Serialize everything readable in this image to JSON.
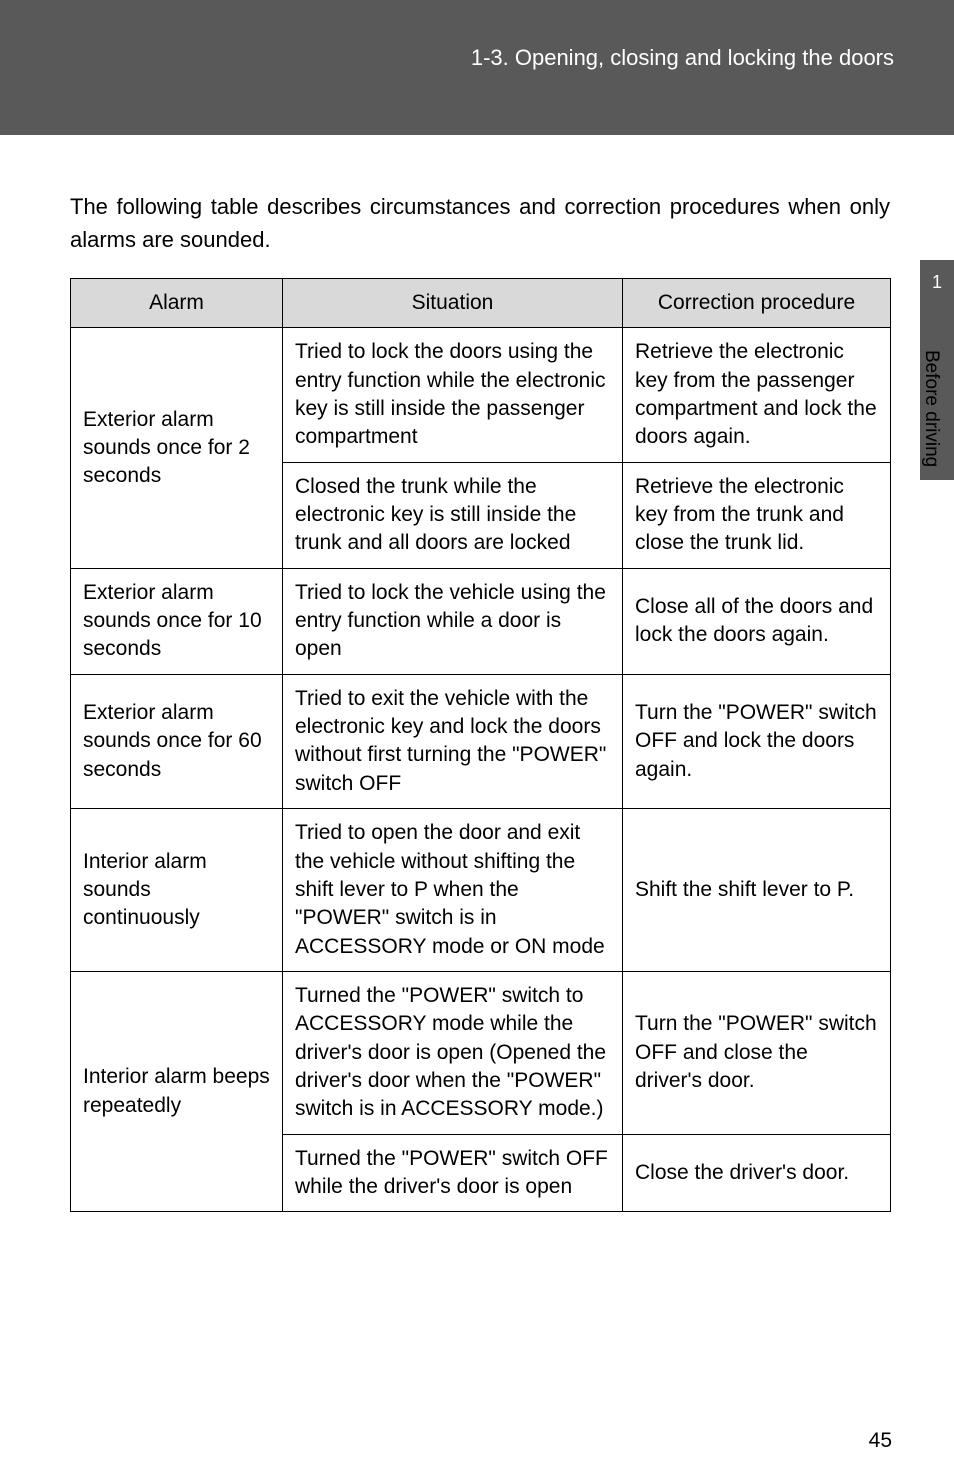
{
  "header": {
    "section_label": "1-3. Opening, closing and locking the doors"
  },
  "intro": "The following table describes circumstances and correction procedures when only alarms are sounded.",
  "table": {
    "columns": [
      "Alarm",
      "Situation",
      "Correction procedure"
    ],
    "header_bg": "#d9d9d9",
    "border_color": "#000000",
    "rows": [
      {
        "alarm": "Exterior alarm sounds once for 2 seconds",
        "alarm_rowspan": 2,
        "situation": "Tried to lock the doors using the entry function while the electronic key is still inside the passenger compartment",
        "correction": "Retrieve the electronic key from the passenger compartment and lock the doors again."
      },
      {
        "situation": "Closed the trunk while the electronic key is still inside the trunk and all doors are locked",
        "correction": "Retrieve the electronic key from the trunk and close the trunk lid."
      },
      {
        "alarm": "Exterior alarm sounds once for 10 seconds",
        "situation": "Tried to lock the vehicle using the entry function while a door is open",
        "correction": "Close all of the doors and lock the doors again."
      },
      {
        "alarm": "Exterior alarm sounds once for 60 seconds",
        "situation": "Tried to exit the vehicle with the electronic key and lock the doors without first turning the \"POWER\" switch OFF",
        "correction": "Turn the \"POWER\" switch OFF and lock the doors again."
      },
      {
        "alarm": "Interior alarm sounds continuously",
        "situation": "Tried to open the door and exit the vehicle without shifting the shift lever to P when the \"POWER\" switch is in ACCESSORY mode or ON mode",
        "correction": "Shift the shift lever to P."
      },
      {
        "alarm": "Interior alarm beeps repeatedly",
        "alarm_rowspan": 2,
        "situation": "Turned the \"POWER\" switch to ACCESSORY mode while the driver's door is open (Opened the driver's door when the \"POWER\" switch is in ACCESSORY mode.)",
        "correction": "Turn the \"POWER\" switch OFF and close the driver's door."
      },
      {
        "situation": "Turned the \"POWER\" switch OFF while the driver's door is open",
        "correction": "Close the driver's door."
      }
    ]
  },
  "side": {
    "chapter_number": "1",
    "chapter_label": "Before driving",
    "tab_bg": "#595959"
  },
  "page_number": "45"
}
